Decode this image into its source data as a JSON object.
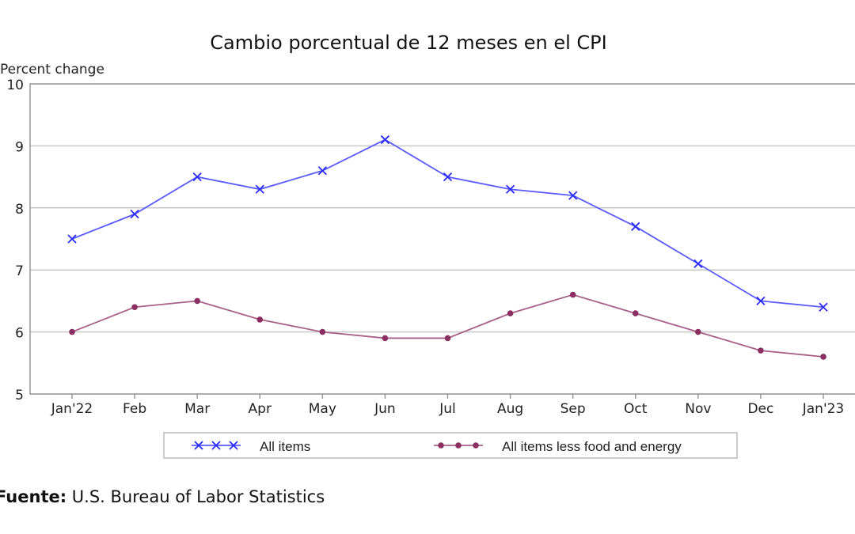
{
  "chart_data": {
    "type": "line",
    "title": "Cambio porcentual de 12 meses en el CPI",
    "ylabel": "Percent change",
    "xlabel": "",
    "ylim": [
      5,
      10
    ],
    "yticks": [
      "5",
      "6",
      "7",
      "8",
      "9",
      "10"
    ],
    "grid": true,
    "legend_position": "bottom",
    "categories": [
      "Jan'22",
      "Feb",
      "Mar",
      "Apr",
      "May",
      "Jun",
      "Jul",
      "Aug",
      "Sep",
      "Oct",
      "Nov",
      "Dec",
      "Jan'23"
    ],
    "series": [
      {
        "name": "All items",
        "color": "#2b2bff",
        "line_color": "#5a5aff",
        "marker": "x",
        "values": [
          7.5,
          7.9,
          8.5,
          8.3,
          8.6,
          9.1,
          8.5,
          8.3,
          8.2,
          7.7,
          7.1,
          6.5,
          6.4
        ]
      },
      {
        "name": "All items less food and energy",
        "color": "#8b2f62",
        "line_color": "#a86088",
        "marker": "dot",
        "values": [
          6.0,
          6.4,
          6.5,
          6.2,
          6.0,
          5.9,
          5.9,
          6.3,
          6.6,
          6.3,
          6.0,
          5.7,
          5.6
        ]
      }
    ]
  },
  "source": {
    "label": "Fuente:",
    "text": " U.S. Bureau of Labor Statistics"
  }
}
